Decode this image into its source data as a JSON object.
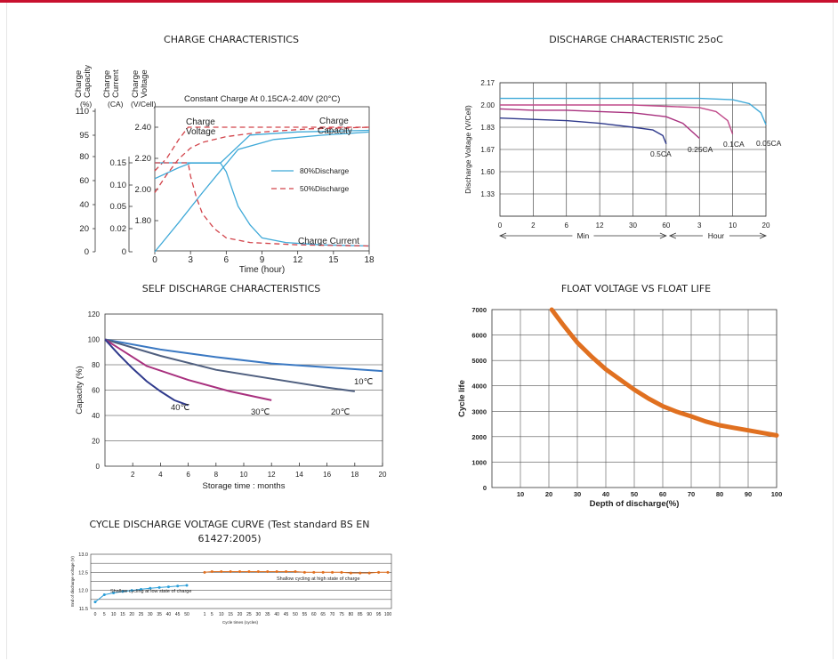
{
  "colors": {
    "brand": "#c8102e",
    "cyan": "#3fa9d8",
    "red_dash": "#d2434a",
    "magenta": "#a8307e",
    "navy": "#2f3a8c",
    "slate": "#4f5f7f",
    "orange": "#e07020"
  },
  "charge": {
    "title": "CHARGE CHARACTERISTICS",
    "subtitle": "Constant Charge At 0.15CA-2.40V  (20°C)",
    "axis_heads": [
      "Charge Capacity",
      "Charge Current",
      "Charge Voltage"
    ],
    "units": [
      "(%)",
      "(CA)",
      "(V/Cell)"
    ],
    "xlabel": "Time (hour)",
    "curve_labels": {
      "voltage": "Charge Voltage",
      "capacity": "Charge Capacity",
      "current": "Charge Current"
    },
    "legend": [
      "80%Discharge",
      "50%Discharge"
    ],
    "chart_data": {
      "type": "line",
      "x_ticks": [
        "0",
        "3",
        "6",
        "9",
        "12",
        "15",
        "18"
      ],
      "capacity_ticks": [
        "110",
        "95",
        "80",
        "60",
        "40",
        "20",
        "0"
      ],
      "current_ticks": [
        "0.15",
        "0.10",
        "0.05",
        "0.02",
        "0"
      ],
      "voltage_ticks": [
        "2.40",
        "2.20",
        "2.00",
        "1.80"
      ],
      "xlim": [
        0,
        18
      ],
      "series": [
        {
          "name": "80%Discharge",
          "kind": "voltage",
          "x": [
            0,
            2,
            3,
            4,
            5.5,
            8,
            12,
            18
          ],
          "y": [
            2.07,
            2.14,
            2.17,
            2.17,
            2.17,
            2.35,
            2.37,
            2.38
          ]
        },
        {
          "name": "50%Discharge",
          "kind": "voltage",
          "x": [
            0,
            1,
            2,
            2.8,
            5,
            9,
            12,
            18
          ],
          "y": [
            2.12,
            2.2,
            2.32,
            2.4,
            2.4,
            2.4,
            2.4,
            2.4
          ]
        },
        {
          "name": "80%Discharge",
          "kind": "capacity",
          "x": [
            0,
            2,
            4,
            5.5,
            7,
            10,
            14,
            18
          ],
          "y": [
            0,
            25,
            50,
            68,
            85,
            92,
            95,
            97
          ]
        },
        {
          "name": "50%Discharge",
          "kind": "capacity",
          "x": [
            0,
            1,
            2,
            3,
            4,
            6,
            9,
            13,
            18
          ],
          "y": [
            50,
            65,
            78,
            86,
            90,
            94,
            97,
            99,
            100
          ]
        },
        {
          "name": "80%Discharge",
          "kind": "current",
          "x": [
            0,
            5.5,
            6,
            6.5,
            7,
            8,
            9,
            11,
            14,
            18
          ],
          "y": [
            0.15,
            0.15,
            0.13,
            0.09,
            0.05,
            0.025,
            0.012,
            0.008,
            0.006,
            0.005
          ]
        },
        {
          "name": "50%Discharge",
          "kind": "current",
          "x": [
            0,
            2.8,
            3,
            3.5,
            4,
            5,
            6,
            8,
            12,
            18
          ],
          "y": [
            0.15,
            0.15,
            0.12,
            0.07,
            0.04,
            0.02,
            0.012,
            0.008,
            0.006,
            0.005
          ]
        }
      ]
    }
  },
  "discharge": {
    "title": "DISCHARGE CHARACTERISTIC 25oC",
    "ylabel": "Discharge Voltage (V/Cell)",
    "y_ticks": [
      "2.17",
      "2.00",
      "1.83",
      "1.67",
      "1.60",
      "1.33"
    ],
    "x_ticks": [
      "0",
      "2",
      "6",
      "12",
      "30",
      "60",
      "3",
      "10",
      "20"
    ],
    "unit_labels": [
      "Min",
      "Hour"
    ],
    "curve_labels": [
      "0.5CA",
      "0.25CA",
      "0.1CA",
      "0.05CA"
    ],
    "chart_data": {
      "type": "line",
      "series": [
        {
          "name": "0.5CA",
          "tick_index": [
            0,
            1,
            2,
            3,
            4,
            4.6,
            4.9,
            5
          ],
          "y": [
            1.9,
            1.89,
            1.88,
            1.86,
            1.83,
            1.81,
            1.77,
            1.71
          ]
        },
        {
          "name": "0.25CA",
          "tick_index": [
            0,
            1,
            2,
            3,
            4,
            5,
            5.5,
            6
          ],
          "y": [
            1.97,
            1.96,
            1.96,
            1.95,
            1.94,
            1.91,
            1.86,
            1.75
          ]
        },
        {
          "name": "0.1CA",
          "tick_index": [
            0,
            2,
            4,
            5,
            6,
            6.5,
            6.85,
            7
          ],
          "y": [
            2.0,
            2.0,
            2.0,
            1.99,
            1.98,
            1.95,
            1.88,
            1.78
          ]
        },
        {
          "name": "0.05CA",
          "tick_index": [
            0,
            2,
            4,
            6,
            7,
            7.5,
            7.85,
            8
          ],
          "y": [
            2.05,
            2.05,
            2.05,
            2.05,
            2.04,
            2.01,
            1.94,
            1.85
          ]
        }
      ]
    }
  },
  "self_discharge": {
    "title": "SELF DISCHARGE CHARACTERISTICS",
    "ylabel": "Capacity (%)",
    "xlabel": "Storage time : months",
    "curve_labels": [
      "40℃",
      "30℃",
      "20℃",
      "10℃"
    ],
    "chart_data": {
      "type": "line",
      "xlim": [
        0,
        20
      ],
      "ylim": [
        0,
        120
      ],
      "x_ticks": [
        "2",
        "4",
        "6",
        "8",
        "10",
        "12",
        "14",
        "16",
        "18",
        "20"
      ],
      "y_ticks": [
        "120",
        "100",
        "80",
        "60",
        "40",
        "20",
        "0"
      ],
      "series": [
        {
          "name": "10℃",
          "x": [
            0,
            4,
            8,
            12,
            16,
            20
          ],
          "y": [
            100,
            92,
            86,
            81,
            78,
            75
          ]
        },
        {
          "name": "20℃",
          "x": [
            0,
            4,
            8,
            12,
            16,
            18
          ],
          "y": [
            100,
            87,
            76,
            69,
            62,
            59
          ]
        },
        {
          "name": "30℃",
          "x": [
            0,
            3,
            6,
            9,
            12
          ],
          "y": [
            100,
            79,
            68,
            59,
            52
          ]
        },
        {
          "name": "40℃",
          "x": [
            0,
            1,
            2,
            3,
            4,
            5,
            6
          ],
          "y": [
            100,
            88,
            77,
            67,
            59,
            52,
            48
          ]
        }
      ]
    }
  },
  "float_life": {
    "title": "FLOAT VOLTAGE VS FLOAT LIFE",
    "ylabel": "Cycle life",
    "xlabel": "Depth of discharge(%)",
    "chart_data": {
      "type": "line",
      "xlim": [
        0,
        100
      ],
      "ylim": [
        0,
        7000
      ],
      "x_ticks": [
        "10",
        "20",
        "30",
        "40",
        "50",
        "60",
        "70",
        "80",
        "90",
        "100"
      ],
      "y_ticks": [
        "7000",
        "6000",
        "5000",
        "4000",
        "3000",
        "2000",
        "1000",
        "0"
      ],
      "series": [
        {
          "name": "",
          "x": [
            21,
            25,
            30,
            35,
            40,
            45,
            50,
            55,
            60,
            65,
            70,
            75,
            80,
            85,
            90,
            95,
            100
          ],
          "y": [
            7000,
            6400,
            5700,
            5150,
            4650,
            4250,
            3850,
            3500,
            3200,
            2980,
            2800,
            2600,
            2450,
            2350,
            2250,
            2150,
            2050
          ]
        }
      ]
    }
  },
  "cycle": {
    "title": "CYCLE DISCHARGE VOLTAGE CURVE (Test standard BS EN 61427:2005)",
    "ylabel": "End of discharge voltage (V)",
    "xlabel": "Cycle times  (cycles)",
    "low_label": "Shallow cycling at low state of charge",
    "high_label": "Shallow cycling at high state of charge",
    "chart_data": {
      "type": "line",
      "ylim": [
        11.5,
        13.0
      ],
      "y_ticks": [
        "13.0",
        "12.5",
        "12.0",
        "11.5"
      ],
      "x_ticks_low": [
        "0",
        "5",
        "10",
        "15",
        "20",
        "25",
        "30",
        "35",
        "40",
        "45",
        "50"
      ],
      "x_ticks_high": [
        "1",
        "5",
        "10",
        "15",
        "20",
        "25",
        "30",
        "35",
        "40",
        "45",
        "50",
        "55",
        "60",
        "65",
        "70",
        "75",
        "80",
        "85",
        "90",
        "95",
        "100"
      ],
      "series": [
        {
          "name": "Shallow cycling at low state of charge",
          "x": [
            0,
            5,
            10,
            15,
            20,
            25,
            30,
            35,
            40,
            45,
            50
          ],
          "y": [
            11.68,
            11.88,
            11.93,
            11.97,
            12.0,
            12.03,
            12.06,
            12.08,
            12.1,
            12.12,
            12.14
          ]
        },
        {
          "name": "Shallow cycling at high state of charge",
          "x": [
            1,
            5,
            10,
            15,
            20,
            25,
            30,
            35,
            40,
            45,
            50,
            55,
            60,
            65,
            70,
            75,
            80,
            85,
            90,
            95,
            100
          ],
          "y": [
            12.5,
            12.52,
            12.52,
            12.52,
            12.52,
            12.52,
            12.52,
            12.52,
            12.52,
            12.52,
            12.52,
            12.5,
            12.5,
            12.5,
            12.5,
            12.5,
            12.48,
            12.48,
            12.48,
            12.5,
            12.5
          ]
        }
      ]
    }
  }
}
